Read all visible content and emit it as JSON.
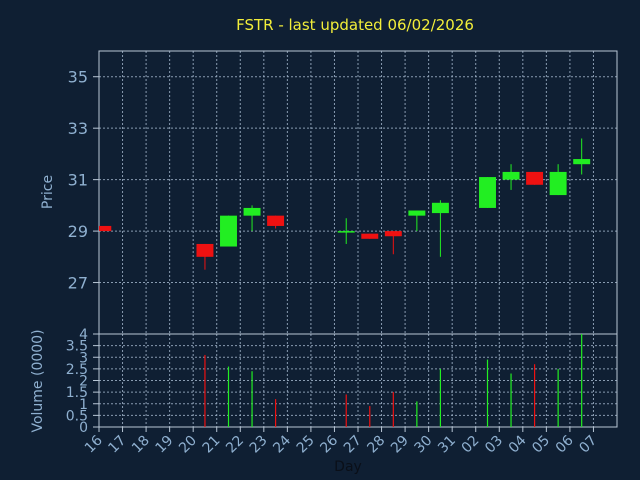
{
  "chart_data": [
    {
      "type": "candlestick",
      "title": "FSTR - last updated 06/02/2026",
      "ylabel": "Price",
      "ylim": [
        25,
        36
      ],
      "yticks": [
        27,
        29,
        31,
        33,
        35
      ],
      "grid": true,
      "categories": [
        "16",
        "17",
        "18",
        "19",
        "20",
        "21",
        "22",
        "23",
        "24",
        "25",
        "26",
        "27",
        "28",
        "29",
        "30",
        "31",
        "02",
        "03",
        "04",
        "05",
        "06",
        "07"
      ],
      "candles": [
        {
          "x": "16",
          "open": 29.2,
          "high": 29.2,
          "low": 29.0,
          "close": 29.0
        },
        {
          "x": "20",
          "open": 28.5,
          "high": 28.5,
          "low": 27.5,
          "close": 28.0
        },
        {
          "x": "21",
          "open": 28.4,
          "high": 29.6,
          "low": 28.4,
          "close": 29.6
        },
        {
          "x": "22",
          "open": 29.6,
          "high": 30.0,
          "low": 29.0,
          "close": 29.9
        },
        {
          "x": "23",
          "open": 29.6,
          "high": 29.6,
          "low": 29.1,
          "close": 29.2
        },
        {
          "x": "26",
          "open": 29.0,
          "high": 29.5,
          "low": 28.5,
          "close": 29.0
        },
        {
          "x": "27",
          "open": 28.9,
          "high": 28.9,
          "low": 28.7,
          "close": 28.7
        },
        {
          "x": "28",
          "open": 29.0,
          "high": 29.0,
          "low": 28.1,
          "close": 28.8
        },
        {
          "x": "29",
          "open": 29.6,
          "high": 29.8,
          "low": 29.0,
          "close": 29.8
        },
        {
          "x": "30",
          "open": 29.7,
          "high": 30.2,
          "low": 28.0,
          "close": 30.1
        },
        {
          "x": "02",
          "open": 29.9,
          "high": 31.1,
          "low": 29.9,
          "close": 31.1
        },
        {
          "x": "03",
          "open": 31.0,
          "high": 31.6,
          "low": 30.6,
          "close": 31.3
        },
        {
          "x": "04",
          "open": 31.3,
          "high": 31.3,
          "low": 30.8,
          "close": 30.8
        },
        {
          "x": "05",
          "open": 30.4,
          "high": 31.6,
          "low": 30.4,
          "close": 31.3
        },
        {
          "x": "06",
          "open": 31.6,
          "high": 32.6,
          "low": 31.2,
          "close": 31.8
        }
      ],
      "colors": {
        "up": "#22ee22",
        "down": "#ee1111"
      }
    },
    {
      "type": "bar",
      "ylabel": "Volume (0000)",
      "xlabel": "Day",
      "ylim": [
        0,
        4
      ],
      "yticks": [
        "0",
        "0.5",
        "1",
        "1.5",
        "2",
        "2.5",
        "3",
        "3.5",
        "4"
      ],
      "categories": [
        "16",
        "17",
        "18",
        "19",
        "20",
        "21",
        "22",
        "23",
        "24",
        "25",
        "26",
        "27",
        "28",
        "29",
        "30",
        "31",
        "02",
        "03",
        "04",
        "05",
        "06",
        "07"
      ],
      "volumes": [
        {
          "x": "16",
          "value": 0.0,
          "dir": "down"
        },
        {
          "x": "20",
          "value": 3.1,
          "dir": "down"
        },
        {
          "x": "21",
          "value": 2.6,
          "dir": "up"
        },
        {
          "x": "22",
          "value": 2.4,
          "dir": "up"
        },
        {
          "x": "23",
          "value": 1.2,
          "dir": "down"
        },
        {
          "x": "26",
          "value": 1.4,
          "dir": "down"
        },
        {
          "x": "27",
          "value": 0.9,
          "dir": "down"
        },
        {
          "x": "28",
          "value": 1.5,
          "dir": "down"
        },
        {
          "x": "29",
          "value": 1.1,
          "dir": "up"
        },
        {
          "x": "30",
          "value": 2.5,
          "dir": "up"
        },
        {
          "x": "02",
          "value": 2.9,
          "dir": "up"
        },
        {
          "x": "03",
          "value": 2.3,
          "dir": "up"
        },
        {
          "x": "04",
          "value": 2.7,
          "dir": "down"
        },
        {
          "x": "05",
          "value": 2.5,
          "dir": "up"
        },
        {
          "x": "06",
          "value": 4.0,
          "dir": "up"
        }
      ]
    }
  ]
}
